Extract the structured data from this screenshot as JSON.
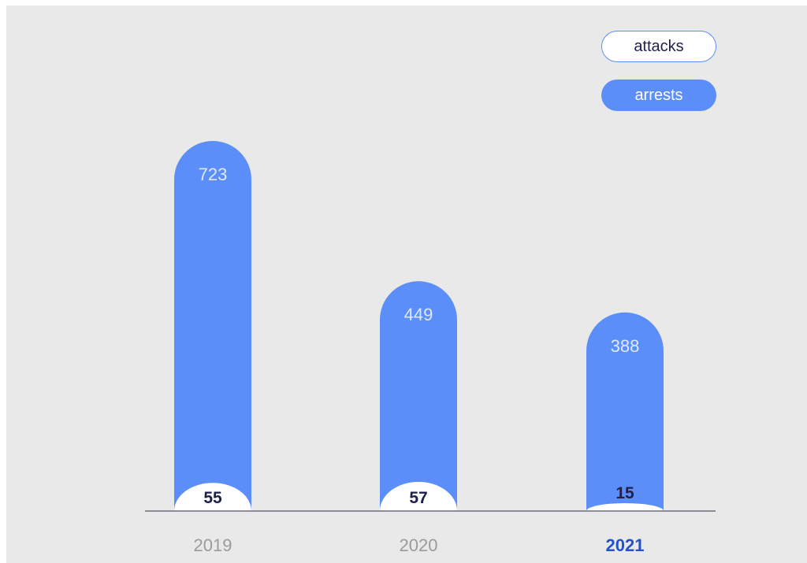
{
  "chart_data": {
    "type": "bar",
    "categories": [
      "2019",
      "2020",
      "2021"
    ],
    "highlight_category": "2021",
    "series": [
      {
        "name": "arrests",
        "values": [
          723,
          449,
          388
        ]
      },
      {
        "name": "attacks",
        "values": [
          55,
          57,
          15
        ]
      }
    ],
    "title": "",
    "xlabel": "",
    "ylabel": "",
    "ylim": [
      0,
      800
    ],
    "grid": false,
    "legend_placement": "top-right"
  },
  "legend": {
    "attacks_label": "attacks",
    "arrests_label": "arrests"
  },
  "colors": {
    "arrests": "#5b8ef9",
    "attacks": "#ffffff",
    "axis": "#6b6f78",
    "tick": "#9b9b9b",
    "tick_highlight": "#2452c7",
    "arrests_label": "#dfe8ff",
    "attacks_label": "#1f1f4a"
  }
}
